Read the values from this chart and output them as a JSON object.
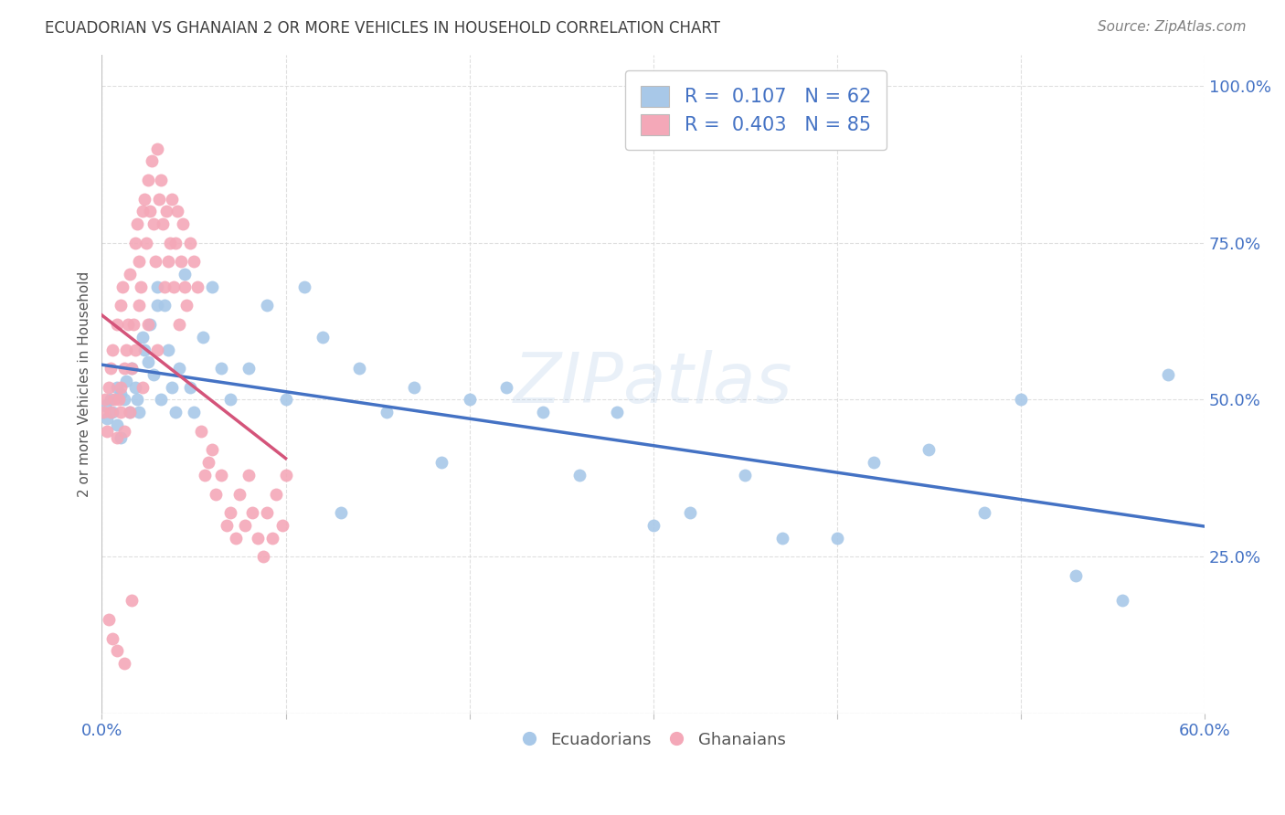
{
  "title": "ECUADORIAN VS GHANAIAN 2 OR MORE VEHICLES IN HOUSEHOLD CORRELATION CHART",
  "source": "Source: ZipAtlas.com",
  "ylabel": "2 or more Vehicles in Household",
  "ytick_labels": [
    "",
    "25.0%",
    "50.0%",
    "75.0%",
    "100.0%"
  ],
  "ytick_values": [
    0.0,
    0.25,
    0.5,
    0.75,
    1.0
  ],
  "xmin": 0.0,
  "xmax": 0.6,
  "ymin": 0.0,
  "ymax": 1.05,
  "watermark": "ZIPatlas",
  "legend_r_blue": "R =  0.107",
  "legend_n_blue": "N = 62",
  "legend_r_pink": "R =  0.403",
  "legend_n_pink": "N = 85",
  "blue_color": "#A8C8E8",
  "pink_color": "#F4A8B8",
  "blue_line_color": "#4472C4",
  "pink_line_color": "#D4547A",
  "title_color": "#404040",
  "source_color": "#808080",
  "axis_label_color": "#4472C4",
  "grid_color": "#D8D8D8",
  "ecuadorians_x": [
    0.002,
    0.003,
    0.005,
    0.006,
    0.008,
    0.008,
    0.01,
    0.01,
    0.012,
    0.013,
    0.015,
    0.016,
    0.018,
    0.019,
    0.02,
    0.022,
    0.023,
    0.025,
    0.026,
    0.028,
    0.03,
    0.03,
    0.032,
    0.034,
    0.036,
    0.038,
    0.04,
    0.042,
    0.045,
    0.048,
    0.05,
    0.055,
    0.06,
    0.065,
    0.07,
    0.08,
    0.09,
    0.1,
    0.11,
    0.12,
    0.13,
    0.14,
    0.155,
    0.17,
    0.185,
    0.2,
    0.22,
    0.24,
    0.26,
    0.28,
    0.3,
    0.32,
    0.35,
    0.37,
    0.4,
    0.42,
    0.45,
    0.48,
    0.5,
    0.53,
    0.555,
    0.58
  ],
  "ecuadorians_y": [
    0.49,
    0.47,
    0.5,
    0.48,
    0.52,
    0.46,
    0.51,
    0.44,
    0.5,
    0.53,
    0.48,
    0.55,
    0.52,
    0.5,
    0.48,
    0.6,
    0.58,
    0.56,
    0.62,
    0.54,
    0.65,
    0.68,
    0.5,
    0.65,
    0.58,
    0.52,
    0.48,
    0.55,
    0.7,
    0.52,
    0.48,
    0.6,
    0.68,
    0.55,
    0.5,
    0.55,
    0.65,
    0.5,
    0.68,
    0.6,
    0.32,
    0.55,
    0.48,
    0.52,
    0.4,
    0.5,
    0.52,
    0.48,
    0.38,
    0.48,
    0.3,
    0.32,
    0.38,
    0.28,
    0.28,
    0.4,
    0.42,
    0.32,
    0.5,
    0.22,
    0.18,
    0.54
  ],
  "ghanaians_x": [
    0.001,
    0.002,
    0.003,
    0.004,
    0.005,
    0.005,
    0.006,
    0.007,
    0.008,
    0.008,
    0.009,
    0.01,
    0.01,
    0.01,
    0.011,
    0.012,
    0.012,
    0.013,
    0.014,
    0.015,
    0.015,
    0.016,
    0.017,
    0.018,
    0.018,
    0.019,
    0.02,
    0.02,
    0.021,
    0.022,
    0.022,
    0.023,
    0.024,
    0.025,
    0.025,
    0.026,
    0.027,
    0.028,
    0.029,
    0.03,
    0.03,
    0.031,
    0.032,
    0.033,
    0.034,
    0.035,
    0.036,
    0.037,
    0.038,
    0.039,
    0.04,
    0.041,
    0.042,
    0.043,
    0.044,
    0.045,
    0.046,
    0.048,
    0.05,
    0.052,
    0.054,
    0.056,
    0.058,
    0.06,
    0.062,
    0.065,
    0.068,
    0.07,
    0.073,
    0.075,
    0.078,
    0.08,
    0.082,
    0.085,
    0.088,
    0.09,
    0.093,
    0.095,
    0.098,
    0.1,
    0.004,
    0.006,
    0.008,
    0.012,
    0.016
  ],
  "ghanaians_y": [
    0.48,
    0.5,
    0.45,
    0.52,
    0.55,
    0.48,
    0.58,
    0.5,
    0.62,
    0.44,
    0.5,
    0.65,
    0.52,
    0.48,
    0.68,
    0.55,
    0.45,
    0.58,
    0.62,
    0.7,
    0.48,
    0.55,
    0.62,
    0.75,
    0.58,
    0.78,
    0.65,
    0.72,
    0.68,
    0.8,
    0.52,
    0.82,
    0.75,
    0.85,
    0.62,
    0.8,
    0.88,
    0.78,
    0.72,
    0.9,
    0.58,
    0.82,
    0.85,
    0.78,
    0.68,
    0.8,
    0.72,
    0.75,
    0.82,
    0.68,
    0.75,
    0.8,
    0.62,
    0.72,
    0.78,
    0.68,
    0.65,
    0.75,
    0.72,
    0.68,
    0.45,
    0.38,
    0.4,
    0.42,
    0.35,
    0.38,
    0.3,
    0.32,
    0.28,
    0.35,
    0.3,
    0.38,
    0.32,
    0.28,
    0.25,
    0.32,
    0.28,
    0.35,
    0.3,
    0.38,
    0.15,
    0.12,
    0.1,
    0.08,
    0.18
  ]
}
